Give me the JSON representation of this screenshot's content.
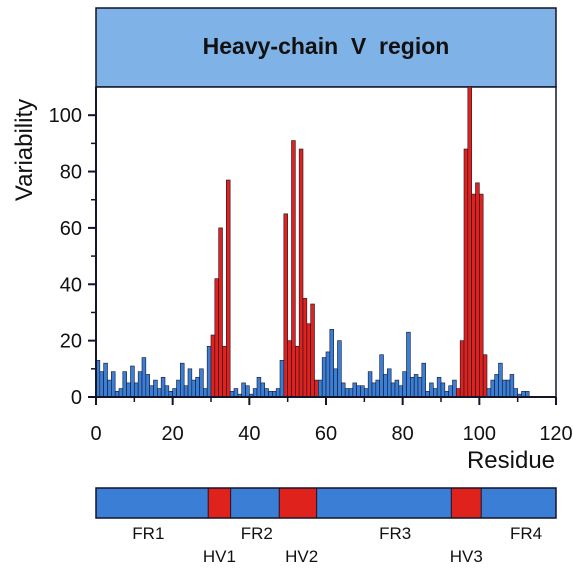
{
  "colors": {
    "framework": "#3a7fd5",
    "hypervariable": "#e0221c",
    "title_box": "#7fb2e6",
    "edge": "#14142a"
  },
  "chart_data": {
    "type": "bar",
    "title": "Heavy-chain  V  region",
    "xlabel": "Residue",
    "ylabel": "Variability",
    "xlim": [
      0,
      120
    ],
    "ylim": [
      0,
      110
    ],
    "x_ticks": [
      0,
      20,
      40,
      60,
      80,
      100,
      120
    ],
    "y_ticks": [
      0,
      20,
      40,
      60,
      80,
      100
    ],
    "x": [
      1,
      2,
      3,
      4,
      5,
      6,
      7,
      8,
      9,
      10,
      11,
      12,
      13,
      14,
      15,
      16,
      17,
      18,
      19,
      20,
      21,
      22,
      23,
      24,
      25,
      26,
      27,
      28,
      29,
      30,
      31,
      32,
      33,
      34,
      35,
      36,
      37,
      38,
      39,
      40,
      41,
      42,
      43,
      44,
      45,
      46,
      47,
      48,
      49,
      50,
      51,
      52,
      53,
      54,
      55,
      56,
      57,
      58,
      59,
      60,
      61,
      62,
      63,
      64,
      65,
      66,
      67,
      68,
      69,
      70,
      71,
      72,
      73,
      74,
      75,
      76,
      77,
      78,
      79,
      80,
      81,
      82,
      83,
      84,
      85,
      86,
      87,
      88,
      89,
      90,
      91,
      92,
      93,
      94,
      95,
      96,
      97,
      98,
      99,
      100,
      101,
      102,
      103,
      104,
      105,
      106,
      107,
      108,
      109,
      110,
      111,
      112,
      113
    ],
    "values": [
      13,
      9,
      12,
      6,
      9,
      2,
      3,
      9,
      5,
      11,
      5,
      9,
      14,
      8,
      4,
      6,
      3,
      7,
      4,
      2,
      3,
      6,
      12,
      4,
      10,
      6,
      7,
      10,
      3,
      18,
      22,
      42,
      60,
      18,
      77,
      2,
      3,
      1,
      5,
      4,
      1,
      3,
      7,
      5,
      3,
      2,
      2,
      3,
      13,
      65,
      20,
      91,
      18,
      88,
      35,
      26,
      33,
      6,
      6,
      14,
      16,
      24,
      10,
      20,
      5,
      3,
      3,
      5,
      4,
      4,
      3,
      9,
      5,
      6,
      15,
      8,
      10,
      5,
      6,
      4,
      9,
      23,
      7,
      8,
      7,
      12,
      2,
      5,
      3,
      7,
      5,
      2,
      4,
      6,
      3,
      20,
      88,
      112,
      72,
      76,
      72,
      15,
      3,
      6,
      8,
      12,
      6,
      6,
      8,
      3,
      1,
      2,
      2
    ],
    "hypervariable_ranges": [
      [
        31,
        35
      ],
      [
        50,
        58
      ],
      [
        95,
        102
      ]
    ]
  },
  "region_map": {
    "segments": [
      {
        "type": "framework",
        "start": 0,
        "end": 30
      },
      {
        "type": "hypervariable",
        "start": 30,
        "end": 36
      },
      {
        "type": "framework",
        "start": 36,
        "end": 49
      },
      {
        "type": "hypervariable",
        "start": 49,
        "end": 59
      },
      {
        "type": "framework",
        "start": 59,
        "end": 95
      },
      {
        "type": "hypervariable",
        "start": 95,
        "end": 103
      },
      {
        "type": "framework",
        "start": 103,
        "end": 123
      }
    ],
    "labels_top": [
      {
        "text": "FR1",
        "residue": 14
      },
      {
        "text": "FR2",
        "residue": 43
      },
      {
        "text": "FR3",
        "residue": 80
      },
      {
        "text": "FR4",
        "residue": 115
      }
    ],
    "labels_bottom": [
      {
        "text": "HV1",
        "residue": 33
      },
      {
        "text": "HV2",
        "residue": 55
      },
      {
        "text": "HV3",
        "residue": 99
      }
    ]
  }
}
